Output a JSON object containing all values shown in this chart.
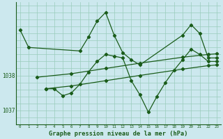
{
  "bg_color": "#cce8ee",
  "grid_color": "#99ccbb",
  "line_color": "#1a5c1a",
  "xlabel": "Graphe pression niveau de la mer (hPa)",
  "xlim": [
    -0.5,
    23.5
  ],
  "ylim": [
    1036.6,
    1040.1
  ],
  "yticks": [
    1037,
    1038
  ],
  "xticks": [
    0,
    1,
    2,
    3,
    4,
    5,
    6,
    7,
    8,
    9,
    10,
    11,
    12,
    13,
    14,
    15,
    16,
    17,
    18,
    19,
    20,
    21,
    22,
    23
  ],
  "grid_x": [
    0,
    1,
    2,
    3,
    4,
    5,
    6,
    7,
    8,
    9,
    10,
    11,
    12,
    13,
    14,
    15,
    16,
    17,
    18,
    19,
    20,
    21,
    22,
    23
  ],
  "grid_y": [
    1036.6,
    1036.8,
    1037.0,
    1037.2,
    1037.4,
    1037.6,
    1037.8,
    1038.0,
    1038.2,
    1038.4,
    1038.6,
    1038.8,
    1039.0,
    1039.2,
    1039.4,
    1039.6,
    1039.8,
    1040.0
  ],
  "s1_x": [
    0,
    1,
    7,
    8,
    9,
    10,
    11,
    12,
    13,
    14,
    19,
    20,
    21,
    22,
    23
  ],
  "s1_y": [
    1039.3,
    1038.8,
    1038.7,
    1039.1,
    1039.55,
    1039.8,
    1039.15,
    1038.65,
    1038.45,
    1038.3,
    1039.15,
    1039.45,
    1039.2,
    1038.5,
    1038.5
  ],
  "s2_x": [
    2,
    6,
    10,
    14,
    19,
    22,
    23
  ],
  "s2_y": [
    1037.95,
    1038.05,
    1038.2,
    1038.35,
    1038.52,
    1038.6,
    1038.62
  ],
  "s3_x": [
    3,
    6,
    10,
    14,
    19,
    22,
    23
  ],
  "s3_y": [
    1037.62,
    1037.7,
    1037.85,
    1038.0,
    1038.18,
    1038.28,
    1038.3
  ],
  "s4_x": [
    3,
    4,
    5,
    6,
    7,
    8,
    9,
    10,
    11,
    12,
    13,
    14,
    15,
    16,
    17,
    18,
    19,
    20,
    21,
    22,
    23
  ],
  "s4_y": [
    1037.62,
    1037.62,
    1037.42,
    1037.5,
    1037.75,
    1038.1,
    1038.4,
    1038.6,
    1038.55,
    1038.5,
    1037.85,
    1037.45,
    1036.95,
    1037.4,
    1037.8,
    1038.15,
    1038.45,
    1038.75,
    1038.6,
    1038.4,
    1038.4
  ]
}
